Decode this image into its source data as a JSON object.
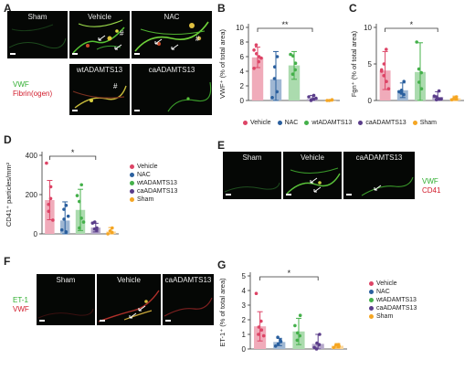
{
  "colors": {
    "vehicle": "#dd4466",
    "nac": "#2a5f9e",
    "wt": "#44b04a",
    "ca": "#5a3d8a",
    "sham": "#f5a623"
  },
  "panels": {
    "a": "A",
    "b": "B",
    "c": "C",
    "d": "D",
    "e": "E",
    "f": "F",
    "g": "G"
  },
  "panel_a": {
    "labels": [
      "Sham",
      "Vehicle",
      "NAC",
      "wtADAMTS13",
      "caADAMTS13"
    ],
    "stain_green": "VWF",
    "stain_red": "Fibrin(ogen)"
  },
  "panel_e": {
    "labels": [
      "Sham",
      "Vehicle",
      "caADAMTS13"
    ],
    "stain_green": "VWF",
    "stain_red": "CD41"
  },
  "panel_f": {
    "labels": [
      "Sham",
      "Vehicle",
      "caADAMTS13"
    ],
    "stain_green": "ET-1",
    "stain_red": "VWF"
  },
  "legend": [
    "Vehicle",
    "NAC",
    "wtADAMTS13",
    "caADAMTS13",
    "Sham"
  ],
  "chart_data": [
    {
      "type": "bar",
      "panel": "B",
      "categories": [
        "Vehicle",
        "NAC",
        "wtADAMTS13",
        "caADAMTS13",
        "Sham"
      ],
      "values": [
        5.9,
        2.9,
        4.8,
        0.2,
        0.0
      ],
      "errors": [
        1.4,
        3.8,
        1.9,
        0.5,
        0.1
      ],
      "points": [
        [
          4.4,
          5.3,
          6.0,
          7.6,
          6.4,
          5.8,
          6.9
        ],
        [
          0.4,
          1.2,
          6.0,
          3.0,
          4.6
        ],
        [
          6.3,
          4.2,
          5.1,
          3.6,
          6.1
        ],
        [
          0.5,
          0.2,
          0.7,
          0.0,
          0.1,
          0.3
        ],
        [
          0.0,
          0.05,
          0.1,
          0.0
        ]
      ],
      "ylabel": "VWF⁺ (% of total area)",
      "ylim": [
        0,
        10
      ],
      "yticks": [
        0,
        2,
        4,
        6,
        8,
        10
      ],
      "significance": "**",
      "sig_between": [
        "Vehicle",
        "caADAMTS13"
      ]
    },
    {
      "type": "bar",
      "panel": "C",
      "categories": [
        "Vehicle",
        "NAC",
        "wtADAMTS13",
        "caADAMTS13",
        "Sham"
      ],
      "values": [
        4.1,
        1.4,
        3.9,
        0.5,
        0.3
      ],
      "errors": [
        2.6,
        1.0,
        4.0,
        0.7,
        0.3
      ],
      "points": [
        [
          4.0,
          7.0,
          2.6,
          3.4,
          5.0,
          1.6,
          4.2
        ],
        [
          1.2,
          0.8,
          2.6,
          1.0,
          1.4
        ],
        [
          8.0,
          3.8,
          1.6,
          4.3,
          2.5
        ],
        [
          0.6,
          0.2,
          1.3,
          0.1,
          0.5,
          0.2
        ],
        [
          0.1,
          0.5,
          0.2,
          0.3
        ]
      ],
      "ylabel": "Fgn⁺ (% of total area)",
      "ylim": [
        0,
        10
      ],
      "yticks": [
        0,
        5,
        10
      ],
      "significance": "*",
      "sig_between": [
        "Vehicle",
        "caADAMTS13"
      ]
    },
    {
      "type": "bar",
      "panel": "D",
      "categories": [
        "Vehicle",
        "NAC",
        "wtADAMTS13",
        "caADAMTS13",
        "Sham"
      ],
      "values": [
        172,
        68,
        122,
        32,
        12
      ],
      "errors": [
        100,
        95,
        105,
        22,
        20
      ],
      "points": [
        [
          360,
          240,
          180,
          115,
          150,
          70
        ],
        [
          20,
          145,
          10,
          75,
          125,
          90
        ],
        [
          195,
          250,
          80,
          30,
          165,
          60
        ],
        [
          55,
          30,
          20,
          60,
          25
        ],
        [
          0,
          30,
          8,
          15
        ]
      ],
      "ylabel": "CD41⁺ particles/mm²",
      "ylim": [
        0,
        400
      ],
      "yticks": [
        0,
        200,
        400
      ],
      "significance": "*",
      "sig_between": [
        "Vehicle",
        "caADAMTS13"
      ]
    },
    {
      "type": "bar",
      "panel": "G",
      "categories": [
        "Vehicle",
        "NAC",
        "wtADAMTS13",
        "caADAMTS13",
        "Sham"
      ],
      "values": [
        1.55,
        0.48,
        1.2,
        0.35,
        0.22
      ],
      "errors": [
        1.0,
        0.25,
        0.9,
        0.65,
        0.15
      ],
      "points": [
        [
          3.8,
          1.9,
          1.3,
          1.0,
          1.5,
          0.9
        ],
        [
          0.2,
          0.6,
          0.5,
          0.8,
          0.35
        ],
        [
          1.6,
          0.9,
          2.3,
          0.6,
          1.1
        ],
        [
          0.1,
          0.3,
          1.0,
          0.0,
          0.4
        ],
        [
          0.1,
          0.3,
          0.2,
          0.25
        ]
      ],
      "ylabel": "ET-1⁺ (% of total area)",
      "ylim": [
        0,
        5
      ],
      "yticks": [
        0,
        1,
        2,
        3,
        4,
        5
      ],
      "significance": "*",
      "sig_between": [
        "Vehicle",
        "caADAMTS13"
      ]
    }
  ]
}
